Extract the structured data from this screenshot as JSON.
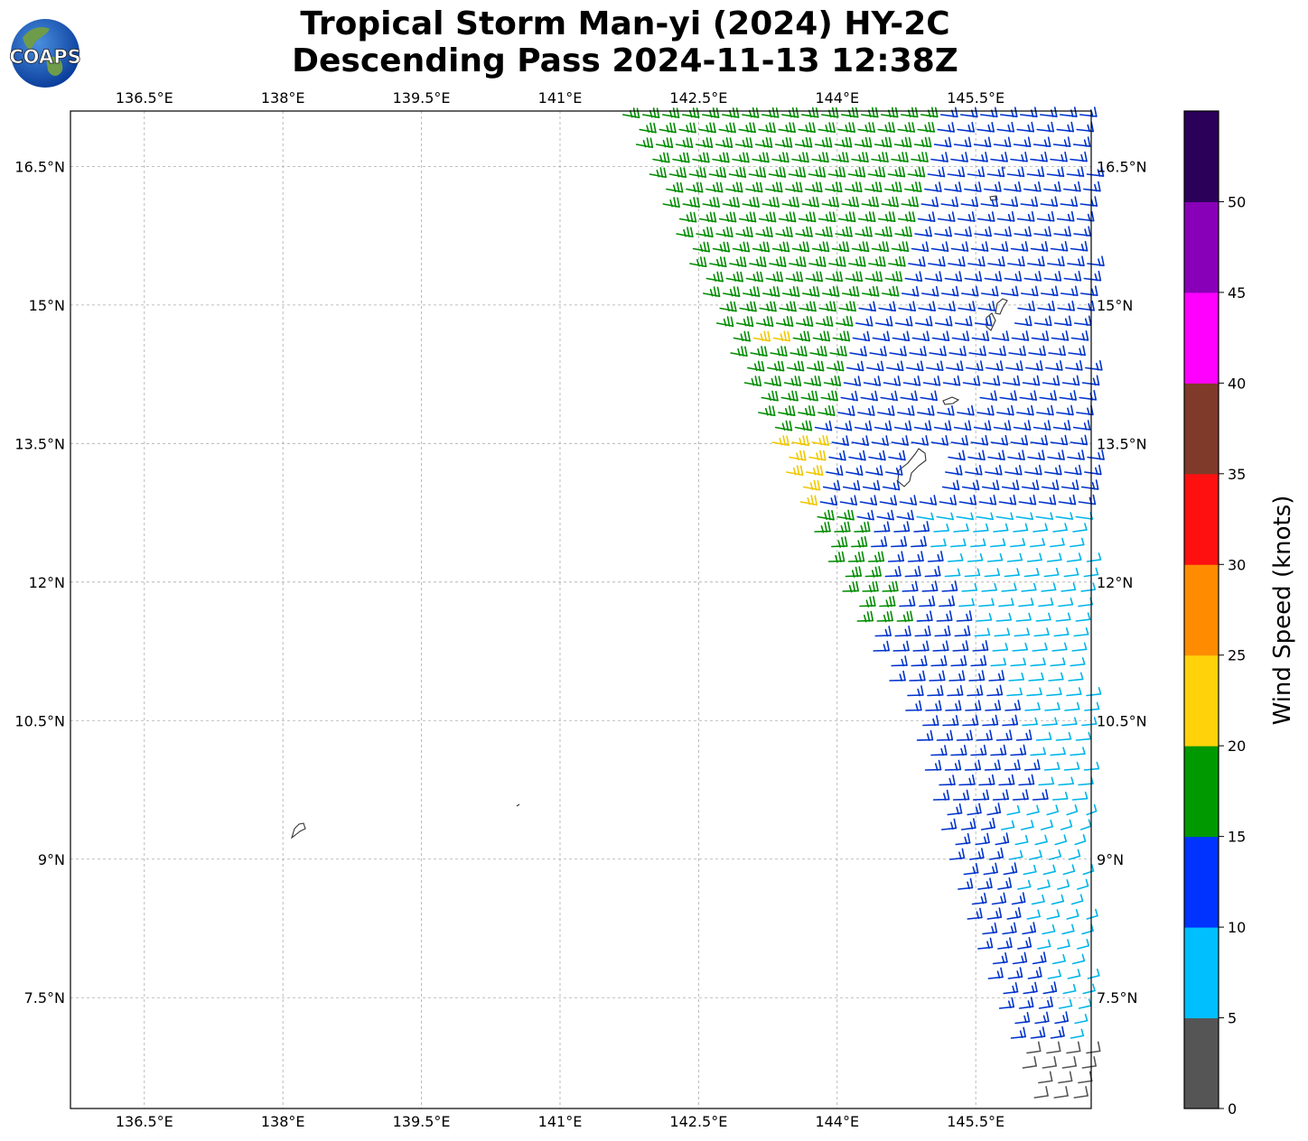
{
  "title": {
    "line1": "Tropical Storm Man-yi (2024) HY-2C",
    "line2": "Descending Pass 2024-11-13 12:38Z"
  },
  "logo": {
    "text": "COAPS",
    "icon": "globe-logo-icon"
  },
  "map": {
    "lon_range": [
      135.7,
      146.75
    ],
    "lat_range": [
      6.3,
      17.1
    ],
    "lon_ticks": [
      "136.5°E",
      "138°E",
      "139.5°E",
      "141°E",
      "142.5°E",
      "144°E",
      "145.5°E"
    ],
    "lat_ticks": [
      "16.5°N",
      "15°N",
      "13.5°N",
      "12°N",
      "10.5°N",
      "9°N",
      "7.5°N"
    ],
    "grid": true,
    "gridline_color": "#aaaaaa"
  },
  "colorbar": {
    "label": "Wind Speed (knots)",
    "ticks": [
      "0",
      "5",
      "10",
      "15",
      "20",
      "25",
      "30",
      "35",
      "40",
      "45",
      "50"
    ],
    "colors": [
      "#555555",
      "#00bfff",
      "#0033ff",
      "#009900",
      "#ffd20a",
      "#ff8c00",
      "#ff1010",
      "#7f3a2a",
      "#ff00ff",
      "#8800b8",
      "#2b0059"
    ]
  },
  "wind_colors": {
    "calm": "#555555",
    "light": "#00b5e8",
    "moderate": "#0033cc",
    "fresh": "#008c00",
    "strong": "#f0c800"
  }
}
